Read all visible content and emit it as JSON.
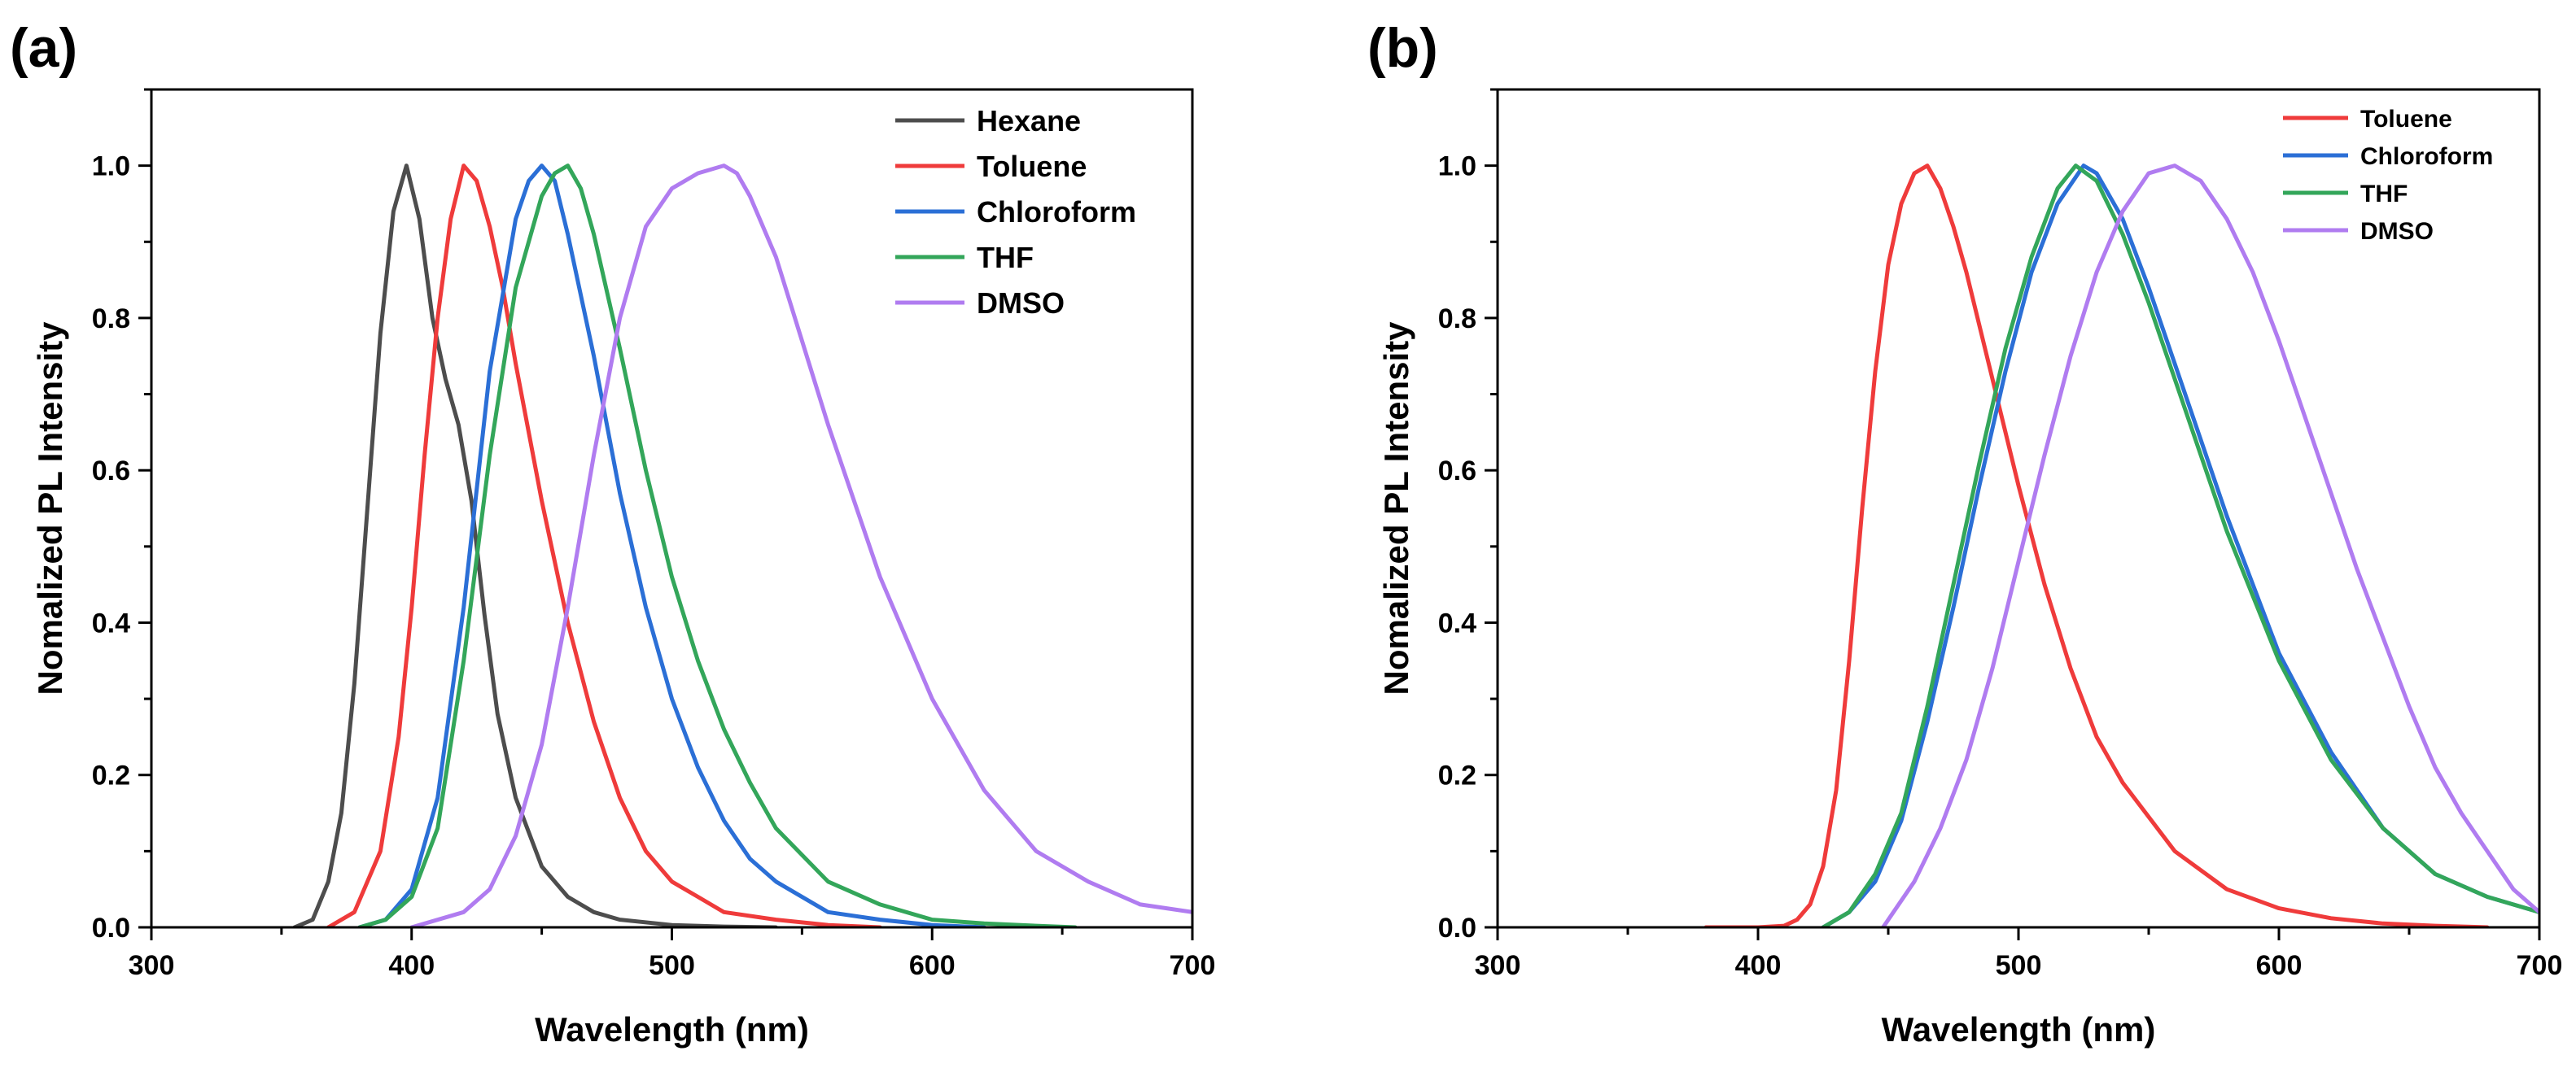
{
  "chart_data": [
    {
      "type": "line",
      "panel_label": "(a)",
      "xlabel": "Wavelength (nm)",
      "ylabel": "Nomalized PL Intensity",
      "xlim": [
        300,
        700
      ],
      "ylim": [
        0,
        1.1
      ],
      "xticks": [
        300,
        400,
        500,
        600,
        700
      ],
      "xtick_labels": [
        "300",
        "400",
        "500",
        "600",
        "700"
      ],
      "yticks": [
        0,
        0.2,
        0.4,
        0.6,
        0.8,
        1.0
      ],
      "ytick_labels": [
        "0.0",
        "0.2",
        "0.4",
        "0.6",
        "0.8",
        "1.0"
      ],
      "grid": false,
      "legend_position": "top-right",
      "series": [
        {
          "name": "Hexane",
          "color": "#4d4d4d",
          "x": [
            355,
            362,
            368,
            373,
            378,
            383,
            388,
            393,
            398,
            403,
            408,
            413,
            418,
            423,
            428,
            433,
            440,
            450,
            460,
            470,
            480,
            500,
            520,
            540
          ],
          "y": [
            0,
            0.01,
            0.06,
            0.15,
            0.32,
            0.55,
            0.78,
            0.94,
            1.0,
            0.93,
            0.8,
            0.72,
            0.66,
            0.56,
            0.41,
            0.28,
            0.17,
            0.08,
            0.04,
            0.02,
            0.01,
            0.003,
            0.001,
            0
          ]
        },
        {
          "name": "Toluene",
          "color": "#ef3b3b",
          "x": [
            368,
            378,
            388,
            395,
            400,
            405,
            410,
            415,
            420,
            425,
            430,
            435,
            440,
            450,
            460,
            470,
            480,
            490,
            500,
            510,
            520,
            540,
            560,
            580
          ],
          "y": [
            0,
            0.02,
            0.1,
            0.25,
            0.42,
            0.62,
            0.8,
            0.93,
            1.0,
            0.98,
            0.92,
            0.84,
            0.74,
            0.56,
            0.4,
            0.27,
            0.17,
            0.1,
            0.06,
            0.04,
            0.02,
            0.01,
            0.003,
            0
          ]
        },
        {
          "name": "Chloroform",
          "color": "#2b6fd6",
          "x": [
            380,
            390,
            400,
            410,
            420,
            430,
            440,
            445,
            450,
            455,
            460,
            470,
            480,
            490,
            500,
            510,
            520,
            530,
            540,
            560,
            580,
            600,
            620
          ],
          "y": [
            0,
            0.01,
            0.05,
            0.17,
            0.42,
            0.73,
            0.93,
            0.98,
            1.0,
            0.98,
            0.91,
            0.75,
            0.57,
            0.42,
            0.3,
            0.21,
            0.14,
            0.09,
            0.06,
            0.02,
            0.01,
            0.003,
            0
          ]
        },
        {
          "name": "THF",
          "color": "#33a65a",
          "x": [
            380,
            390,
            400,
            410,
            420,
            430,
            440,
            450,
            455,
            460,
            465,
            470,
            480,
            490,
            500,
            510,
            520,
            530,
            540,
            560,
            580,
            600,
            620,
            640,
            655
          ],
          "y": [
            0,
            0.01,
            0.04,
            0.13,
            0.35,
            0.62,
            0.84,
            0.96,
            0.99,
            1.0,
            0.97,
            0.91,
            0.76,
            0.6,
            0.46,
            0.35,
            0.26,
            0.19,
            0.13,
            0.06,
            0.03,
            0.01,
            0.005,
            0.002,
            0
          ]
        },
        {
          "name": "DMSO",
          "color": "#b07cf0",
          "x": [
            400,
            420,
            430,
            440,
            450,
            460,
            470,
            480,
            490,
            500,
            510,
            520,
            525,
            530,
            540,
            550,
            560,
            570,
            580,
            600,
            620,
            640,
            660,
            680,
            700
          ],
          "y": [
            0,
            0.02,
            0.05,
            0.12,
            0.24,
            0.42,
            0.62,
            0.8,
            0.92,
            0.97,
            0.99,
            1.0,
            0.99,
            0.96,
            0.88,
            0.77,
            0.66,
            0.56,
            0.46,
            0.3,
            0.18,
            0.1,
            0.06,
            0.03,
            0.02
          ]
        }
      ]
    },
    {
      "type": "line",
      "panel_label": "(b)",
      "xlabel": "Wavelength (nm)",
      "ylabel": "Nomalized PL Intensity",
      "xlim": [
        300,
        700
      ],
      "ylim": [
        0,
        1.1
      ],
      "xticks": [
        300,
        400,
        500,
        600,
        700
      ],
      "xtick_labels": [
        "300",
        "400",
        "500",
        "600",
        "700"
      ],
      "yticks": [
        0,
        0.2,
        0.4,
        0.6,
        0.8,
        1.0
      ],
      "ytick_labels": [
        "0.0",
        "0.2",
        "0.4",
        "0.6",
        "0.8",
        "1.0"
      ],
      "grid": false,
      "legend_position": "top-right",
      "series": [
        {
          "name": "Toluene",
          "color": "#ef3b3b",
          "x": [
            380,
            400,
            410,
            415,
            420,
            425,
            430,
            435,
            440,
            445,
            450,
            455,
            460,
            465,
            470,
            475,
            480,
            490,
            500,
            510,
            520,
            530,
            540,
            560,
            580,
            600,
            620,
            640,
            660,
            680
          ],
          "y": [
            0,
            0,
            0.002,
            0.01,
            0.03,
            0.08,
            0.18,
            0.35,
            0.55,
            0.73,
            0.87,
            0.95,
            0.99,
            1.0,
            0.97,
            0.92,
            0.86,
            0.72,
            0.58,
            0.45,
            0.34,
            0.25,
            0.19,
            0.1,
            0.05,
            0.025,
            0.012,
            0.005,
            0.002,
            0
          ]
        },
        {
          "name": "Chloroform",
          "color": "#2b6fd6",
          "x": [
            425,
            435,
            445,
            455,
            465,
            475,
            485,
            495,
            505,
            515,
            525,
            530,
            540,
            550,
            560,
            570,
            580,
            600,
            620,
            640,
            660,
            680,
            700
          ],
          "y": [
            0,
            0.02,
            0.06,
            0.14,
            0.27,
            0.42,
            0.58,
            0.73,
            0.86,
            0.95,
            1.0,
            0.99,
            0.93,
            0.84,
            0.74,
            0.64,
            0.54,
            0.36,
            0.23,
            0.13,
            0.07,
            0.04,
            0.02
          ]
        },
        {
          "name": "THF",
          "color": "#33a65a",
          "x": [
            425,
            435,
            445,
            455,
            465,
            475,
            485,
            495,
            505,
            515,
            522,
            530,
            540,
            550,
            560,
            570,
            580,
            600,
            620,
            640,
            660,
            680,
            700
          ],
          "y": [
            0,
            0.02,
            0.07,
            0.15,
            0.29,
            0.45,
            0.61,
            0.76,
            0.88,
            0.97,
            1.0,
            0.98,
            0.91,
            0.82,
            0.72,
            0.62,
            0.52,
            0.35,
            0.22,
            0.13,
            0.07,
            0.04,
            0.02
          ]
        },
        {
          "name": "DMSO",
          "color": "#b07cf0",
          "x": [
            448,
            460,
            470,
            480,
            490,
            500,
            510,
            520,
            530,
            540,
            550,
            560,
            570,
            580,
            590,
            600,
            610,
            620,
            630,
            640,
            650,
            660,
            670,
            680,
            690,
            700
          ],
          "y": [
            0,
            0.06,
            0.13,
            0.22,
            0.34,
            0.48,
            0.62,
            0.75,
            0.86,
            0.94,
            0.99,
            1.0,
            0.98,
            0.93,
            0.86,
            0.77,
            0.67,
            0.57,
            0.47,
            0.38,
            0.29,
            0.21,
            0.15,
            0.1,
            0.05,
            0.02
          ]
        }
      ]
    }
  ]
}
